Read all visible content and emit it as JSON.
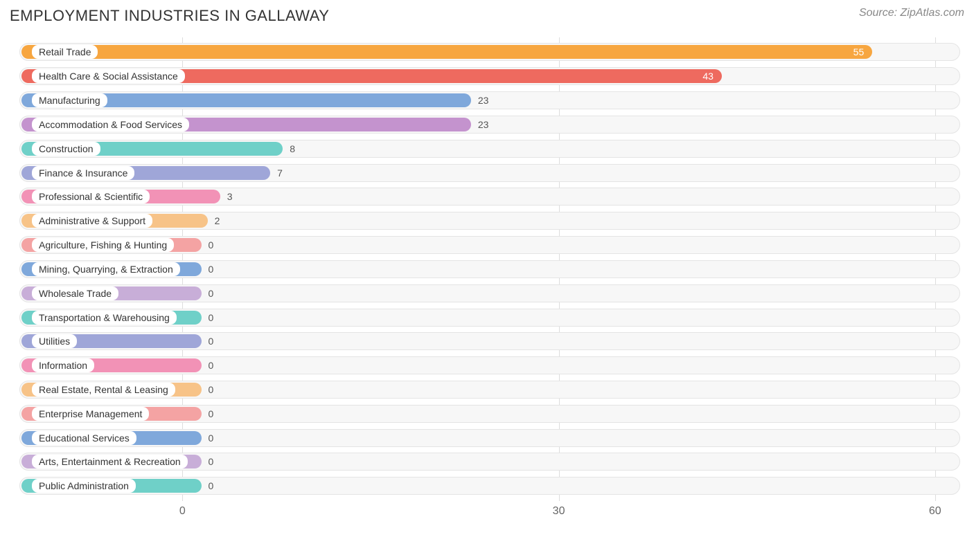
{
  "title": "EMPLOYMENT INDUSTRIES IN GALLAWAY",
  "source": "Source: ZipAtlas.com",
  "chart": {
    "type": "bar-horizontal",
    "xmin": -13,
    "xmax": 62,
    "xticks": [
      0,
      30,
      60
    ],
    "grid_color": "#dddddd",
    "track_bg": "#f7f7f7",
    "track_border": "#e4e4e4",
    "zero_bar_extent": 1.5,
    "title_fontsize": 22,
    "label_fontsize": 14,
    "tick_fontsize": 16,
    "background_color": "#ffffff",
    "bars": [
      {
        "label": "Retail Trade",
        "value": 55,
        "color": "#f7a640",
        "value_inside": true
      },
      {
        "label": "Health Care & Social Assistance",
        "value": 43,
        "color": "#ee6a5f",
        "value_inside": true
      },
      {
        "label": "Manufacturing",
        "value": 23,
        "color": "#7fa8db",
        "value_inside": false
      },
      {
        "label": "Accommodation & Food Services",
        "value": 23,
        "color": "#c493ce",
        "value_inside": false
      },
      {
        "label": "Construction",
        "value": 8,
        "color": "#6fd0c8",
        "value_inside": false
      },
      {
        "label": "Finance & Insurance",
        "value": 7,
        "color": "#9fa6d8",
        "value_inside": false
      },
      {
        "label": "Professional & Scientific",
        "value": 3,
        "color": "#f292b6",
        "value_inside": false
      },
      {
        "label": "Administrative & Support",
        "value": 2,
        "color": "#f7c388",
        "value_inside": false
      },
      {
        "label": "Agriculture, Fishing & Hunting",
        "value": 0,
        "color": "#f4a3a3",
        "value_inside": false
      },
      {
        "label": "Mining, Quarrying, & Extraction",
        "value": 0,
        "color": "#7fa8db",
        "value_inside": false
      },
      {
        "label": "Wholesale Trade",
        "value": 0,
        "color": "#c8aed8",
        "value_inside": false
      },
      {
        "label": "Transportation & Warehousing",
        "value": 0,
        "color": "#6fd0c8",
        "value_inside": false
      },
      {
        "label": "Utilities",
        "value": 0,
        "color": "#9fa6d8",
        "value_inside": false
      },
      {
        "label": "Information",
        "value": 0,
        "color": "#f292b6",
        "value_inside": false
      },
      {
        "label": "Real Estate, Rental & Leasing",
        "value": 0,
        "color": "#f7c388",
        "value_inside": false
      },
      {
        "label": "Enterprise Management",
        "value": 0,
        "color": "#f4a3a3",
        "value_inside": false
      },
      {
        "label": "Educational Services",
        "value": 0,
        "color": "#7fa8db",
        "value_inside": false
      },
      {
        "label": "Arts, Entertainment & Recreation",
        "value": 0,
        "color": "#c8aed8",
        "value_inside": false
      },
      {
        "label": "Public Administration",
        "value": 0,
        "color": "#6fd0c8",
        "value_inside": false
      }
    ]
  }
}
